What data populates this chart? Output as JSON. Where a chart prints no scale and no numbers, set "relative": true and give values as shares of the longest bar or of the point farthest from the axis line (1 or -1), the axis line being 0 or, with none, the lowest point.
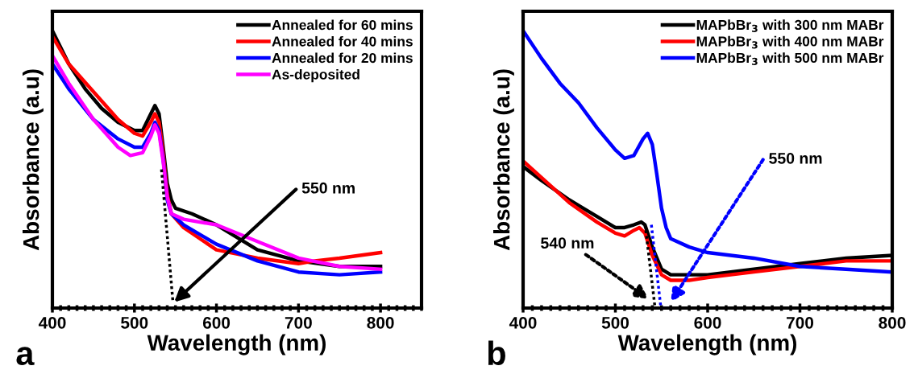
{
  "chart_data": [
    {
      "type": "line",
      "relative": true,
      "xlabel": "Wavelength (nm)",
      "ylabel": "Absorbance (a.u)",
      "legend": "top right",
      "tick_labels": "x",
      "line_style": "solid",
      "marker": "none",
      "xlim": [
        400,
        850
      ],
      "xticks": [
        400,
        {
          "value": 410,
          "label": null
        },
        {
          "value": 420,
          "label": null
        },
        {
          "value": 430,
          "label": null
        },
        {
          "value": 440,
          "label": null
        },
        {
          "value": 450,
          "label": null
        },
        {
          "value": 460,
          "label": null
        },
        {
          "value": 470,
          "label": null
        },
        {
          "value": 480,
          "label": null
        },
        {
          "value": 490,
          "label": null
        },
        500,
        {
          "value": 510,
          "label": null
        },
        {
          "value": 520,
          "label": null
        },
        {
          "value": 530,
          "label": null
        },
        {
          "value": 540,
          "label": null
        },
        {
          "value": 550,
          "label": null
        },
        {
          "value": 560,
          "label": null
        },
        {
          "value": 570,
          "label": null
        },
        {
          "value": 580,
          "label": null
        },
        {
          "value": 590,
          "label": null
        },
        600,
        {
          "value": 610,
          "label": null
        },
        {
          "value": 620,
          "label": null
        },
        {
          "value": 630,
          "label": null
        },
        {
          "value": 640,
          "label": null
        },
        {
          "value": 650,
          "label": null
        },
        {
          "value": 660,
          "label": null
        },
        {
          "value": 670,
          "label": null
        },
        {
          "value": 680,
          "label": null
        },
        {
          "value": 690,
          "label": null
        },
        700,
        {
          "value": 710,
          "label": null
        },
        {
          "value": 720,
          "label": null
        },
        {
          "value": 730,
          "label": null
        },
        {
          "value": 740,
          "label": null
        },
        {
          "value": 750,
          "label": null
        },
        {
          "value": 760,
          "label": null
        },
        {
          "value": 770,
          "label": null
        },
        {
          "value": 780,
          "label": null
        },
        {
          "value": 790,
          "label": null
        },
        800,
        {
          "value": 810,
          "label": null
        },
        {
          "value": 820,
          "label": null
        },
        {
          "value": 830,
          "label": null
        },
        {
          "value": 840,
          "label": null
        },
        {
          "value": 850,
          "label": null
        }
      ],
      "series": [
        {
          "name": "Annealed for 60 mins",
          "color": "#000000",
          "x": [
            400,
            420,
            440,
            460,
            480,
            500,
            510,
            520,
            525,
            530,
            535,
            540,
            545,
            550,
            570,
            600,
            650,
            700,
            750,
            800
          ],
          "values": [
            1.0,
            0.88,
            0.79,
            0.72,
            0.67,
            0.64,
            0.64,
            0.7,
            0.73,
            0.7,
            0.58,
            0.45,
            0.39,
            0.36,
            0.34,
            0.3,
            0.21,
            0.17,
            0.15,
            0.15
          ]
        },
        {
          "name": "Annealed for 40 mins",
          "color": "#ff0000",
          "x": [
            400,
            420,
            450,
            480,
            500,
            510,
            520,
            525,
            530,
            535,
            540,
            545,
            560,
            600,
            650,
            700,
            720,
            750,
            800
          ],
          "values": [
            0.98,
            0.88,
            0.78,
            0.68,
            0.63,
            0.62,
            0.67,
            0.7,
            0.67,
            0.56,
            0.41,
            0.34,
            0.29,
            0.21,
            0.18,
            0.16,
            0.17,
            0.18,
            0.2
          ]
        },
        {
          "name": "Annealed for 20 mins",
          "color": "#0000ff",
          "x": [
            400,
            420,
            450,
            480,
            500,
            510,
            520,
            525,
            530,
            535,
            540,
            545,
            560,
            600,
            650,
            700,
            750,
            800
          ],
          "values": [
            0.88,
            0.79,
            0.68,
            0.61,
            0.58,
            0.58,
            0.63,
            0.67,
            0.64,
            0.54,
            0.39,
            0.34,
            0.3,
            0.23,
            0.17,
            0.13,
            0.12,
            0.13
          ]
        },
        {
          "name": "As-deposited",
          "color": "#ff00ff",
          "x": [
            400,
            420,
            450,
            480,
            495,
            510,
            520,
            525,
            530,
            535,
            540,
            545,
            560,
            600,
            650,
            700,
            750,
            800
          ],
          "values": [
            0.91,
            0.81,
            0.68,
            0.58,
            0.55,
            0.56,
            0.62,
            0.66,
            0.63,
            0.53,
            0.4,
            0.34,
            0.32,
            0.3,
            0.24,
            0.18,
            0.15,
            0.14
          ]
        },
        {
          "type": "line",
          "line_style": "dotted",
          "color": "#000000",
          "x": [
            533,
            547
          ],
          "values": [
            0.5,
            0.02
          ]
        }
      ],
      "annotations": [
        "550 nm",
        "a"
      ]
    },
    {
      "type": "line",
      "relative": true,
      "xlabel": "Wavelength (nm)",
      "ylabel": "Absorbance (a.u)",
      "legend": "top right",
      "tick_labels": "x",
      "line_style": "solid",
      "marker": "none",
      "xlim": [
        400,
        800
      ],
      "xticks": [
        400,
        {
          "value": 410,
          "label": null
        },
        {
          "value": 420,
          "label": null
        },
        {
          "value": 430,
          "label": null
        },
        {
          "value": 440,
          "label": null
        },
        {
          "value": 450,
          "label": null
        },
        {
          "value": 460,
          "label": null
        },
        {
          "value": 470,
          "label": null
        },
        {
          "value": 480,
          "label": null
        },
        {
          "value": 490,
          "label": null
        },
        500,
        {
          "value": 510,
          "label": null
        },
        {
          "value": 520,
          "label": null
        },
        {
          "value": 530,
          "label": null
        },
        {
          "value": 540,
          "label": null
        },
        {
          "value": 550,
          "label": null
        },
        {
          "value": 560,
          "label": null
        },
        {
          "value": 570,
          "label": null
        },
        {
          "value": 580,
          "label": null
        },
        {
          "value": 590,
          "label": null
        },
        600,
        {
          "value": 610,
          "label": null
        },
        {
          "value": 620,
          "label": null
        },
        {
          "value": 630,
          "label": null
        },
        {
          "value": 640,
          "label": null
        },
        {
          "value": 650,
          "label": null
        },
        {
          "value": 660,
          "label": null
        },
        {
          "value": 670,
          "label": null
        },
        {
          "value": 680,
          "label": null
        },
        {
          "value": 690,
          "label": null
        },
        700,
        {
          "value": 710,
          "label": null
        },
        {
          "value": 720,
          "label": null
        },
        {
          "value": 730,
          "label": null
        },
        {
          "value": 740,
          "label": null
        },
        {
          "value": 750,
          "label": null
        },
        {
          "value": 760,
          "label": null
        },
        {
          "value": 770,
          "label": null
        },
        {
          "value": 780,
          "label": null
        },
        {
          "value": 790,
          "label": null
        },
        800
      ],
      "series": [
        {
          "name": "MAPbBr$_{3}$ with 300 nm MABr",
          "color": "#000000",
          "x": [
            400,
            420,
            450,
            480,
            500,
            510,
            520,
            528,
            532,
            540,
            550,
            560,
            580,
            600,
            650,
            700,
            750,
            800
          ],
          "values": [
            0.51,
            0.46,
            0.39,
            0.33,
            0.29,
            0.29,
            0.3,
            0.31,
            0.3,
            0.22,
            0.14,
            0.12,
            0.12,
            0.12,
            0.14,
            0.16,
            0.18,
            0.19
          ]
        },
        {
          "name": "MAPbBr$_{3}$ with 400 nm MABr",
          "color": "#ff0000",
          "x": [
            400,
            420,
            450,
            480,
            500,
            510,
            520,
            526,
            532,
            540,
            550,
            560,
            580,
            600,
            650,
            700,
            750,
            800
          ],
          "values": [
            0.53,
            0.47,
            0.38,
            0.31,
            0.27,
            0.26,
            0.28,
            0.29,
            0.27,
            0.19,
            0.12,
            0.1,
            0.1,
            0.11,
            0.13,
            0.15,
            0.17,
            0.17
          ]
        },
        {
          "name": "MAPbBr$_{3}$ with 500 nm MABr",
          "color": "#0000ff",
          "x": [
            400,
            420,
            440,
            460,
            480,
            500,
            510,
            520,
            530,
            535,
            540,
            545,
            550,
            555,
            560,
            580,
            600,
            650,
            700,
            750,
            800
          ],
          "values": [
            1.0,
            0.9,
            0.81,
            0.74,
            0.65,
            0.57,
            0.54,
            0.55,
            0.61,
            0.63,
            0.59,
            0.48,
            0.36,
            0.29,
            0.25,
            0.22,
            0.2,
            0.18,
            0.15,
            0.14,
            0.13
          ]
        },
        {
          "type": "line",
          "line_style": "dotted",
          "color": "#000000",
          "x": [
            533,
            543
          ],
          "values": [
            0.28,
            0.0
          ]
        },
        {
          "type": "line",
          "line_style": "dotted",
          "color": "#0000ff",
          "x": [
            539,
            549
          ],
          "values": [
            0.3,
            0.01
          ]
        }
      ],
      "annotations": [
        "540 nm",
        "550 nm",
        "b"
      ]
    }
  ]
}
